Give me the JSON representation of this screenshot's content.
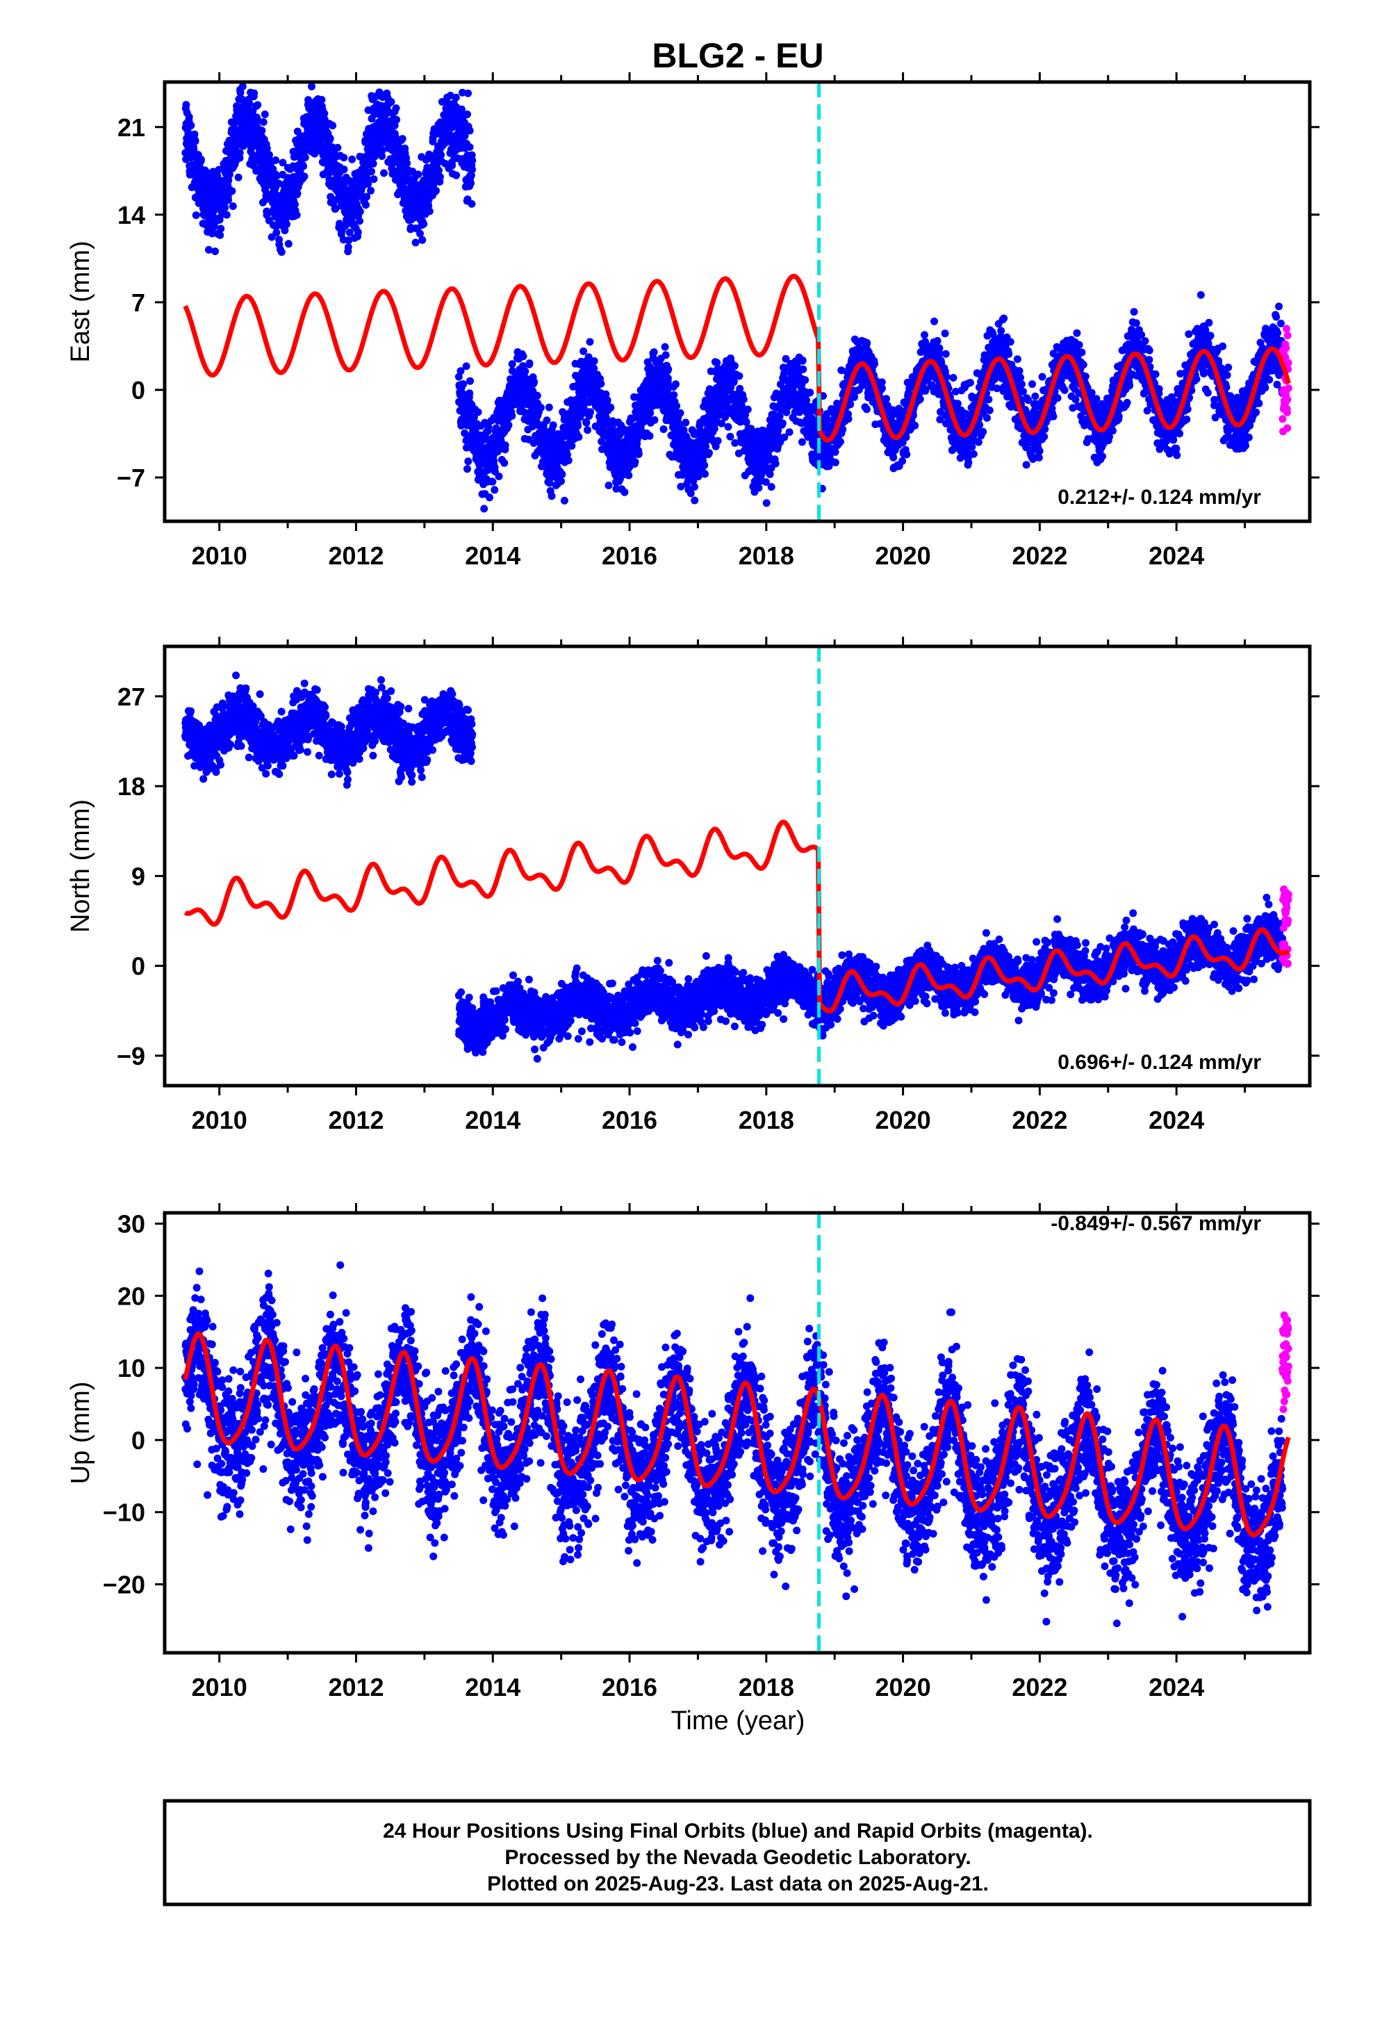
{
  "colors": {
    "final_orbits": "#0000ff",
    "rapid_orbits": "#ff00ff",
    "model": "#ff0000",
    "event_line": "#00e5e5",
    "frame": "#000000"
  },
  "chart_data": [
    {
      "type": "scatter",
      "title": "BLG2 - EU",
      "ylabel": "East (mm)",
      "xlabel": "",
      "xlim": [
        2009.2,
        2025.95
      ],
      "ylim": [
        -10.5,
        24.6
      ],
      "x_ticks": [
        "2010",
        "2012",
        "2014",
        "2016",
        "2018",
        "2020",
        "2022",
        "2024"
      ],
      "y_ticks": [
        "21",
        "14",
        "7",
        "0",
        "−7"
      ],
      "y_tick_values": [
        21,
        14,
        7,
        0,
        -7
      ],
      "rate_label": "0.212+/- 0.124 mm/yr",
      "event_line_x": 2018.77,
      "series": [
        {
          "segment": "2009.5-2013.7",
          "type": "final_orbits_scatter",
          "mean": 18,
          "annual_amplitude": 3.3,
          "noise": 1.5
        },
        {
          "segment": "2013.5-2018.77",
          "type": "final_orbits_scatter",
          "mean": -2.6,
          "annual_amplitude": 3.0,
          "noise": 1.3
        },
        {
          "segment": "2018.77-2025.55",
          "type": "final_orbits_scatter",
          "mean": -0.4,
          "annual_amplitude": 3.0,
          "noise": 1.2
        },
        {
          "segment": "2025.55-2025.64",
          "type": "rapid_orbits_scatter",
          "range": [
            -6,
            5
          ]
        },
        {
          "type": "model_line",
          "pre_event": {
            "mean": 5.1,
            "trend_per_yr": 0.2,
            "amplitude": 3.1
          },
          "post_event": {
            "mean": -0.4,
            "trend_per_yr": 0.2,
            "amplitude": 3.0
          }
        }
      ]
    },
    {
      "type": "scatter",
      "title": "",
      "ylabel": "North (mm)",
      "xlabel": "",
      "xlim": [
        2009.2,
        2025.95
      ],
      "ylim": [
        -12,
        32
      ],
      "x_ticks": [
        "2010",
        "2012",
        "2014",
        "2016",
        "2018",
        "2020",
        "2022",
        "2024"
      ],
      "y_ticks": [
        "27",
        "18",
        "9",
        "0",
        "−9"
      ],
      "y_tick_values": [
        27,
        18,
        9,
        0,
        -9
      ],
      "rate_label": "0.696+/- 0.124 mm/yr",
      "event_line_x": 2018.77,
      "series": [
        {
          "segment": "2009.5-2013.7",
          "type": "final_orbits_scatter",
          "mean": 23.5,
          "annual_amplitude": 1.8,
          "noise": 1.4
        },
        {
          "segment": "2013.5-2018.77",
          "type": "final_orbits_scatter",
          "mean": -5.3,
          "trend_per_yr": 0.6,
          "annual_amplitude": 1.0,
          "noise": 1.2
        },
        {
          "segment": "2018.77-2025.55",
          "type": "final_orbits_scatter",
          "mean": -2.8,
          "trend_per_yr": 0.7,
          "annual_amplitude": 1.3,
          "noise": 1.2
        },
        {
          "segment": "2025.55-2025.64",
          "type": "rapid_orbits_scatter",
          "range": [
            0,
            8
          ]
        },
        {
          "type": "model_line",
          "pre_event": {
            "start": 5.8,
            "trend_per_yr": 0.7,
            "amplitude": 1.6
          },
          "post_event": {
            "start": -3.0,
            "trend_per_yr": 0.7,
            "amplitude": 1.4
          }
        }
      ]
    },
    {
      "type": "scatter",
      "title": "",
      "ylabel": "Up (mm)",
      "xlabel": "Time (year)",
      "xlim": [
        2009.2,
        2025.95
      ],
      "ylim": [
        -29.5,
        31.5
      ],
      "x_ticks": [
        "2010",
        "2012",
        "2014",
        "2016",
        "2018",
        "2020",
        "2022",
        "2024"
      ],
      "y_ticks": [
        "30",
        "20",
        "10",
        "0",
        "−10",
        "−20"
      ],
      "y_tick_values": [
        30,
        20,
        10,
        0,
        -10,
        -20
      ],
      "rate_label": "-0.849+/- 0.567 mm/yr",
      "event_line_x": 2018.77,
      "series": [
        {
          "segment": "2009.5-2025.55",
          "type": "final_orbits_scatter",
          "mean": 5.5,
          "trend_per_yr": -0.85,
          "annual_amplitude": 7.0,
          "noise": 4.0
        },
        {
          "segment": "2025.55-2025.64",
          "type": "rapid_orbits_scatter",
          "range": [
            4,
            18
          ]
        },
        {
          "type": "model_line",
          "mean": 6.5,
          "trend_per_yr": -0.85,
          "amplitude": 7.2,
          "semiannual_amplitude": 1.3
        }
      ]
    }
  ],
  "info_box": {
    "line1": "24 Hour Positions Using Final Orbits (blue) and Rapid Orbits (magenta).",
    "line2": "Processed by the Nevada Geodetic Laboratory.",
    "line3": "Plotted on 2025-Aug-23. Last data on 2025-Aug-21."
  }
}
